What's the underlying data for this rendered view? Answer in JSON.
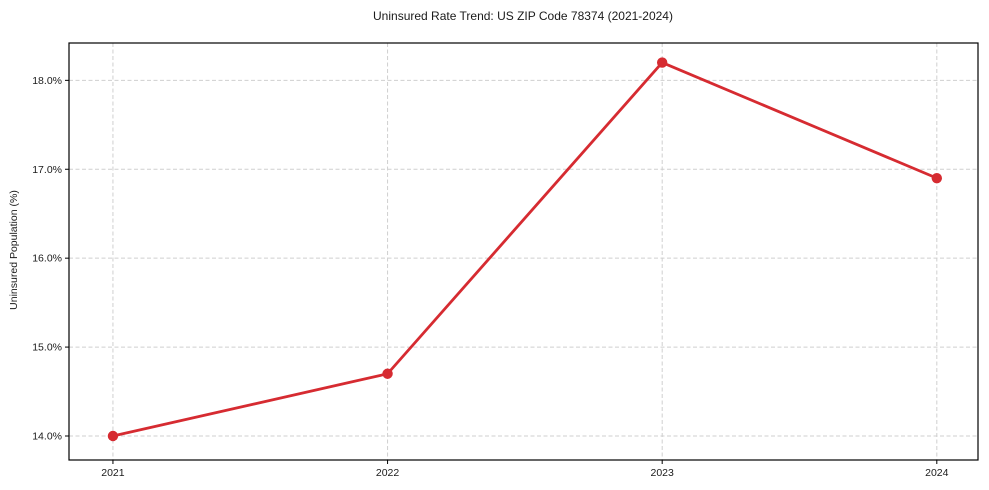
{
  "chart_data": {
    "type": "line",
    "title": "Uninsured Rate Trend: US ZIP Code 78374 (2021-2024)",
    "xlabel": "",
    "ylabel": "Uninsured Population (%)",
    "x": [
      2021,
      2022,
      2023,
      2024
    ],
    "y": [
      14.0,
      14.7,
      18.2,
      16.9
    ],
    "series": [
      {
        "name": "Uninsured Rate",
        "values": [
          14.0,
          14.7,
          18.2,
          16.9
        ]
      }
    ],
    "xtick_labels": [
      "2021",
      "2022",
      "2023",
      "2024"
    ],
    "ytick_values": [
      14.0,
      15.0,
      16.0,
      17.0,
      18.0
    ],
    "ytick_labels": [
      "14.0%",
      "15.0%",
      "16.0%",
      "17.0%",
      "18.0%"
    ],
    "xlim": [
      2020.84,
      2024.15
    ],
    "ylim": [
      13.73,
      18.42
    ],
    "grid": true,
    "grid_style": "dashed",
    "legend": "none",
    "colors": {
      "line": "#d62b31",
      "marker": "#d62b31",
      "grid": "#cfcfcf",
      "spine": "#000000",
      "text": "#1a1a1a",
      "background": "#ffffff"
    }
  }
}
